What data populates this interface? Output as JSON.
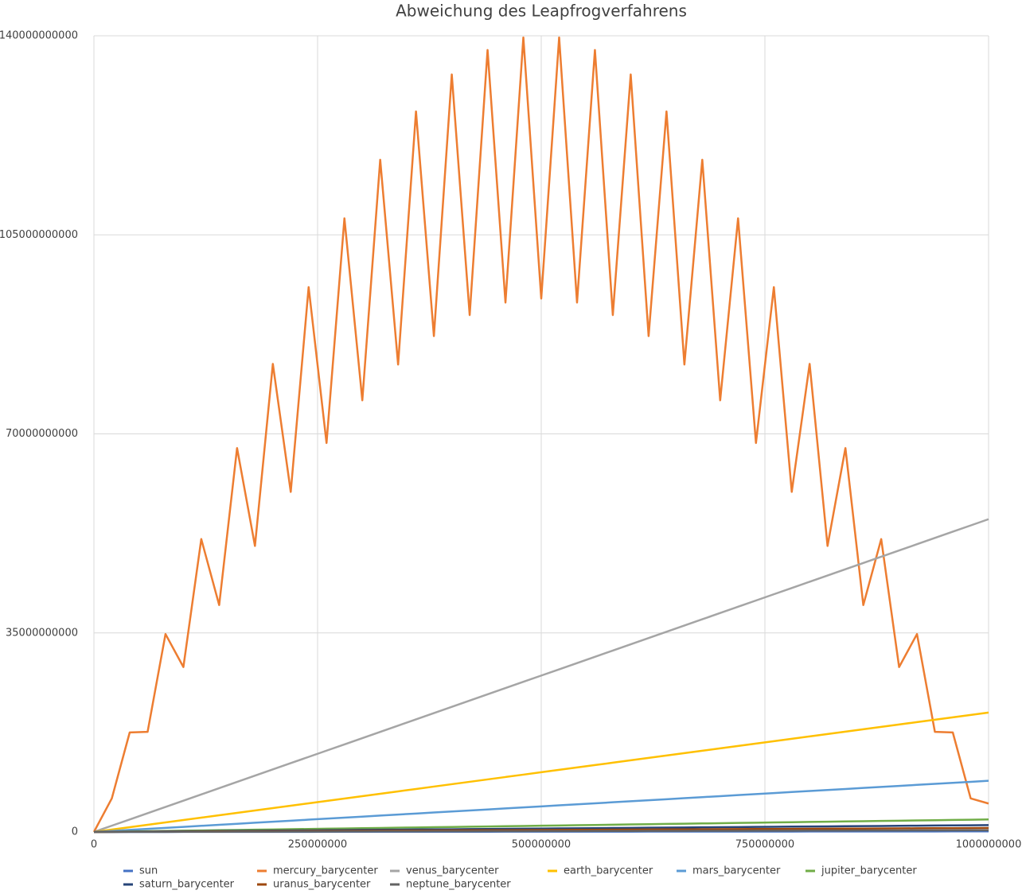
{
  "chart_data": {
    "type": "line",
    "title": "Abweichung des Leapfrogverfahrens",
    "x": [
      0,
      20000000,
      40000000,
      60000000,
      80000000,
      100000000,
      120000000,
      140000000,
      160000000,
      180000000,
      200000000,
      220000000,
      240000000,
      260000000,
      280000000,
      300000000,
      320000000,
      340000000,
      360000000,
      380000000,
      400000000,
      420000000,
      440000000,
      460000000,
      480000000,
      500000000,
      520000000,
      540000000,
      560000000,
      580000000,
      600000000,
      620000000,
      640000000,
      660000000,
      680000000,
      700000000,
      720000000,
      740000000,
      760000000,
      780000000,
      800000000,
      820000000,
      840000000,
      860000000,
      880000000,
      900000000,
      920000000,
      940000000,
      960000000,
      980000000,
      1000000000
    ],
    "xlim": [
      0,
      1000000000
    ],
    "xticks": [
      0,
      250000000,
      500000000,
      750000000,
      1000000000
    ],
    "ylim": [
      0,
      140000000000
    ],
    "yticks": [
      0,
      35000000000,
      70000000000,
      105000000000,
      140000000000
    ],
    "grid": true,
    "legend": "bottom",
    "series": [
      {
        "name": "sun",
        "color": "#4472c4",
        "values": [
          0,
          2000000.0,
          4000000.0,
          6000000.0,
          8000000.0,
          10000000.0,
          12000000.0,
          14000000.0,
          16000000.0,
          18000000.0,
          20000000.0,
          22000000.0,
          24000000.0,
          26000000.0,
          28000000.0,
          30000000.0,
          32000000.0,
          34000000.0,
          36000000.0,
          38000000.0,
          40000000.0,
          42000000.0,
          44000000.0,
          46000000.0,
          48000000.0,
          50000000.0,
          52000000.0,
          54000000.0,
          56000000.0,
          58000000.0,
          60000000.0,
          62000000.0,
          64000000.0,
          66000000.0,
          68000000.0,
          70000000.0,
          72000000.0,
          74000000.0,
          76000000.0,
          78000000.0,
          80000000.0,
          82000000.0,
          84000000.0,
          86000000.0,
          88000000.0,
          90000000.0,
          92000000.0,
          94000000.0,
          96000000.0,
          98000000.0,
          100000000.0
        ]
      },
      {
        "name": "mercury_barycenter",
        "color": "#ed7d31",
        "values": [
          0,
          5900000000.0,
          17500000000.0,
          17600000000.0,
          34800000000.0,
          29000000000.0,
          51500000000.0,
          39900000000.0,
          67500000000.0,
          50300000000.0,
          82300000000.0,
          59800000000.0,
          95800000000.0,
          68400000000.0,
          107900000000.0,
          75900000000.0,
          118200000000.0,
          82200000000.0,
          126700000000.0,
          87200000000.0,
          133200000000.0,
          90900000000.0,
          137500000000.0,
          93100000000.0,
          139700000000.0,
          93800000000.0,
          139700000000.0,
          93100000000.0,
          137500000000.0,
          90900000000.0,
          133200000000.0,
          87200000000.0,
          126700000000.0,
          82200000000.0,
          118200000000.0,
          75900000000.0,
          107900000000.0,
          68400000000.0,
          95800000000.0,
          59800000000.0,
          82300000000.0,
          50300000000.0,
          67500000000.0,
          39900000000.0,
          51500000000.0,
          29000000000.0,
          34800000000.0,
          17600000000.0,
          17500000000.0,
          5900000000.0,
          5000000000.0
        ]
      },
      {
        "name": "venus_barycenter",
        "color": "#a5a5a5",
        "values": [
          0,
          1100000000.0,
          2200000000.0,
          3300000000.0,
          4400000000.0,
          5500000000.0,
          6600000000.0,
          7700000000.0,
          8800000000.0,
          9900000000.0,
          11000000000.0,
          12100000000.0,
          13200000000.0,
          14300000000.0,
          15400000000.0,
          16500000000.0,
          17600000000.0,
          18700000000.0,
          19800000000.0,
          20900000000.0,
          22000000000.0,
          23100000000.0,
          24200000000.0,
          25300000000.0,
          26400000000.0,
          27500000000.0,
          28600000000.0,
          29700000000.0,
          30800000000.0,
          31900000000.0,
          33000000000.0,
          34100000000.0,
          35200000000.0,
          36300000000.0,
          37400000000.0,
          38500000000.0,
          39600000000.0,
          40700000000.0,
          41800000000.0,
          42900000000.0,
          44000000000.0,
          45100000000.0,
          46200000000.0,
          47300000000.0,
          48400000000.0,
          49500000000.0,
          50600000000.0,
          51700000000.0,
          52800000000.0,
          53900000000.0,
          55000000000.0
        ]
      },
      {
        "name": "earth_barycenter",
        "color": "#ffc000",
        "values": [
          0,
          420000000.0,
          840000000.0,
          1260000000.0,
          1680000000.0,
          2100000000.0,
          2520000000.0,
          2940000000.0,
          3360000000.0,
          3780000000.0,
          4200000000.0,
          4620000000.0,
          5040000000.0,
          5460000000.0,
          5880000000.0,
          6300000000.0,
          6720000000.0,
          7140000000.0,
          7560000000.0,
          7980000000.0,
          8400000000.0,
          8820000000.0,
          9240000000.0,
          9660000000.0,
          10080000000.0,
          10500000000.0,
          10920000000.0,
          11340000000.0,
          11760000000.0,
          12180000000.0,
          12600000000.0,
          13020000000.0,
          13440000000.0,
          13860000000.0,
          14280000000.0,
          14700000000.0,
          15120000000.0,
          15540000000.0,
          15960000000.0,
          16380000000.0,
          16800000000.0,
          17220000000.0,
          17640000000.0,
          18060000000.0,
          18480000000.0,
          18900000000.0,
          19320000000.0,
          19740000000.0,
          20160000000.0,
          20580000000.0,
          21000000000.0
        ]
      },
      {
        "name": "mars_barycenter",
        "color": "#5b9bd5",
        "values": [
          0,
          180000000.0,
          360000000.0,
          540000000.0,
          720000000.0,
          900000000.0,
          1080000000.0,
          1260000000.0,
          1440000000.0,
          1620000000.0,
          1800000000.0,
          1980000000.0,
          2160000000.0,
          2340000000.0,
          2520000000.0,
          2700000000.0,
          2880000000.0,
          3060000000.0,
          3240000000.0,
          3420000000.0,
          3600000000.0,
          3780000000.0,
          3960000000.0,
          4140000000.0,
          4320000000.0,
          4500000000.0,
          4680000000.0,
          4860000000.0,
          5040000000.0,
          5220000000.0,
          5400000000.0,
          5580000000.0,
          5760000000.0,
          5940000000.0,
          6120000000.0,
          6300000000.0,
          6480000000.0,
          6660000000.0,
          6840000000.0,
          7020000000.0,
          7200000000.0,
          7380000000.0,
          7560000000.0,
          7740000000.0,
          7920000000.0,
          8100000000.0,
          8280000000.0,
          8460000000.0,
          8640000000.0,
          8820000000.0,
          9000000000.0
        ]
      },
      {
        "name": "jupiter_barycenter",
        "color": "#70ad47",
        "values": [
          0,
          44000000.0,
          88000000.0,
          132000000.0,
          176000000.0,
          220000000.0,
          264000000.0,
          308000000.0,
          352000000.0,
          396000000.0,
          440000000.0,
          484000000.0,
          528000000.0,
          572000000.0,
          616000000.0,
          660000000.0,
          704000000.0,
          748000000.0,
          792000000.0,
          836000000.0,
          880000000.0,
          924000000.0,
          968000000.0,
          1012000000.0,
          1056000000.0,
          1100000000.0,
          1144000000.0,
          1188000000.0,
          1232000000.0,
          1276000000.0,
          1320000000.0,
          1364000000.0,
          1408000000.0,
          1452000000.0,
          1496000000.0,
          1540000000.0,
          1584000000.0,
          1628000000.0,
          1672000000.0,
          1716000000.0,
          1760000000.0,
          1804000000.0,
          1848000000.0,
          1892000000.0,
          1936000000.0,
          1980000000.0,
          2024000000.0,
          2068000000.0,
          2112000000.0,
          2156000000.0,
          2200000000.0
        ]
      },
      {
        "name": "saturn_barycenter",
        "color": "#264478",
        "values": [
          0,
          24000000.0,
          48000000.0,
          72000000.0,
          96000000.0,
          120000000.0,
          144000000.0,
          168000000.0,
          192000000.0,
          216000000.0,
          240000000.0,
          264000000.0,
          288000000.0,
          312000000.0,
          336000000.0,
          360000000.0,
          384000000.0,
          408000000.0,
          432000000.0,
          456000000.0,
          480000000.0,
          504000000.0,
          528000000.0,
          552000000.0,
          576000000.0,
          600000000.0,
          624000000.0,
          648000000.0,
          672000000.0,
          696000000.0,
          720000000.0,
          744000000.0,
          768000000.0,
          792000000.0,
          816000000.0,
          840000000.0,
          864000000.0,
          888000000.0,
          912000000.0,
          936000000.0,
          960000000.0,
          984000000.0,
          1008000000.0,
          1032000000.0,
          1056000000.0,
          1080000000.0,
          1104000000.0,
          1128000000.0,
          1152000000.0,
          1176000000.0,
          1200000000.0
        ]
      },
      {
        "name": "uranus_barycenter",
        "color": "#9e480e",
        "values": [
          0,
          14000000.0,
          28000000.0,
          42000000.0,
          56000000.0,
          70000000.0,
          84000000.0,
          98000000.0,
          112000000.0,
          126000000.0,
          140000000.0,
          154000000.0,
          168000000.0,
          182000000.0,
          196000000.0,
          210000000.0,
          224000000.0,
          238000000.0,
          252000000.0,
          266000000.0,
          280000000.0,
          294000000.0,
          308000000.0,
          322000000.0,
          336000000.0,
          350000000.0,
          364000000.0,
          378000000.0,
          392000000.0,
          406000000.0,
          420000000.0,
          434000000.0,
          448000000.0,
          462000000.0,
          476000000.0,
          490000000.0,
          504000000.0,
          518000000.0,
          532000000.0,
          546000000.0,
          560000000.0,
          574000000.0,
          588000000.0,
          602000000.0,
          616000000.0,
          630000000.0,
          644000000.0,
          658000000.0,
          672000000.0,
          686000000.0,
          700000000.0
        ]
      },
      {
        "name": "neptune_barycenter",
        "color": "#636363",
        "values": [
          0,
          6000000.0,
          12000000.0,
          18000000.0,
          24000000.0,
          30000000.0,
          36000000.0,
          42000000.0,
          48000000.0,
          54000000.0,
          60000000.0,
          66000000.0,
          72000000.0,
          78000000.0,
          84000000.0,
          90000000.0,
          96000000.0,
          102000000.0,
          108000000.0,
          114000000.0,
          120000000.0,
          126000000.0,
          132000000.0,
          138000000.0,
          144000000.0,
          150000000.0,
          156000000.0,
          162000000.0,
          168000000.0,
          174000000.0,
          180000000.0,
          186000000.0,
          192000000.0,
          198000000.0,
          204000000.0,
          210000000.0,
          216000000.0,
          222000000.0,
          228000000.0,
          234000000.0,
          240000000.0,
          246000000.0,
          252000000.0,
          258000000.0,
          264000000.0,
          270000000.0,
          276000000.0,
          282000000.0,
          288000000.0,
          294000000.0,
          300000000.0
        ]
      }
    ]
  }
}
